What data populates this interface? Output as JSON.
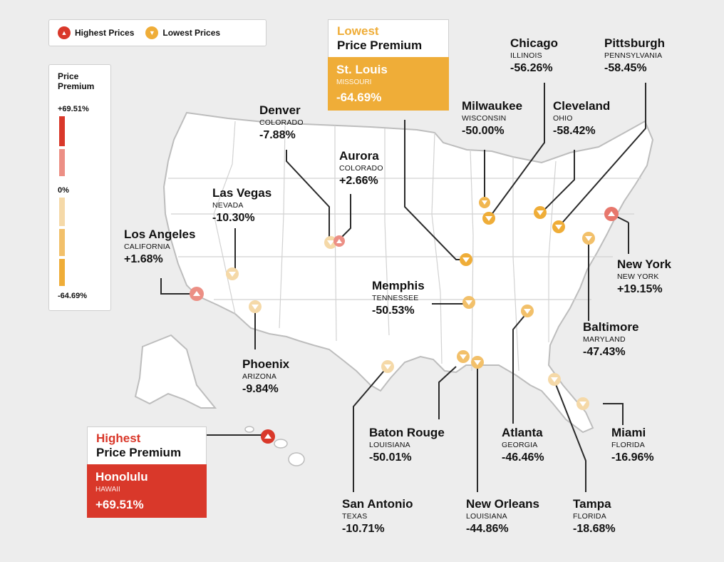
{
  "legend": {
    "highest": "Highest Prices",
    "lowest": "Lowest Prices",
    "colors": {
      "highest": "#d9382a",
      "lowest": "#efad38",
      "light_high": "#ec8f85",
      "light_low": "#f5d9a8"
    }
  },
  "scale": {
    "title_line1": "Price",
    "title_line2": "Premium",
    "top": "+69.51%",
    "mid": "0%",
    "bottom": "-64.69%"
  },
  "lowest_callout": {
    "line1": "Lowest",
    "line2": "Price Premium",
    "city": "St. Louis",
    "state": "MISSOURI",
    "value": "-64.69%"
  },
  "highest_callout": {
    "line1": "Highest",
    "line2": "Price Premium",
    "city": "Honolulu",
    "state": "HAWAII",
    "value": "+69.51%"
  },
  "cities": [
    {
      "name": "Chicago",
      "state": "ILLINOIS",
      "value": "-56.26%",
      "kind": "low"
    },
    {
      "name": "Pittsburgh",
      "state": "PENNSYLVANIA",
      "value": "-58.45%",
      "kind": "low"
    },
    {
      "name": "Denver",
      "state": "COLORADO",
      "value": "-7.88%",
      "kind": "low"
    },
    {
      "name": "Milwaukee",
      "state": "WISCONSIN",
      "value": "-50.00%",
      "kind": "low"
    },
    {
      "name": "Cleveland",
      "state": "OHIO",
      "value": "-58.42%",
      "kind": "low"
    },
    {
      "name": "Aurora",
      "state": "COLORADO",
      "value": "+2.66%",
      "kind": "high"
    },
    {
      "name": "Las Vegas",
      "state": "NEVADA",
      "value": "-10.30%",
      "kind": "low"
    },
    {
      "name": "Los Angeles",
      "state": "CALIFORNIA",
      "value": "+1.68%",
      "kind": "high"
    },
    {
      "name": "Memphis",
      "state": "TENNESSEE",
      "value": "-50.53%",
      "kind": "low"
    },
    {
      "name": "New York",
      "state": "NEW YORK",
      "value": "+19.15%",
      "kind": "high"
    },
    {
      "name": "Baltimore",
      "state": "MARYLAND",
      "value": "-47.43%",
      "kind": "low"
    },
    {
      "name": "Phoenix",
      "state": "ARIZONA",
      "value": "-9.84%",
      "kind": "low"
    },
    {
      "name": "Baton Rouge",
      "state": "LOUISIANA",
      "value": "-50.01%",
      "kind": "low"
    },
    {
      "name": "Atlanta",
      "state": "GEORGIA",
      "value": "-46.46%",
      "kind": "low"
    },
    {
      "name": "Miami",
      "state": "FLORIDA",
      "value": "-16.96%",
      "kind": "low"
    },
    {
      "name": "San Antonio",
      "state": "TEXAS",
      "value": "-10.71%",
      "kind": "low"
    },
    {
      "name": "New Orleans",
      "state": "LOUISIANA",
      "value": "-44.86%",
      "kind": "low"
    },
    {
      "name": "Tampa",
      "state": "FLORIDA",
      "value": "-18.68%",
      "kind": "low"
    }
  ]
}
